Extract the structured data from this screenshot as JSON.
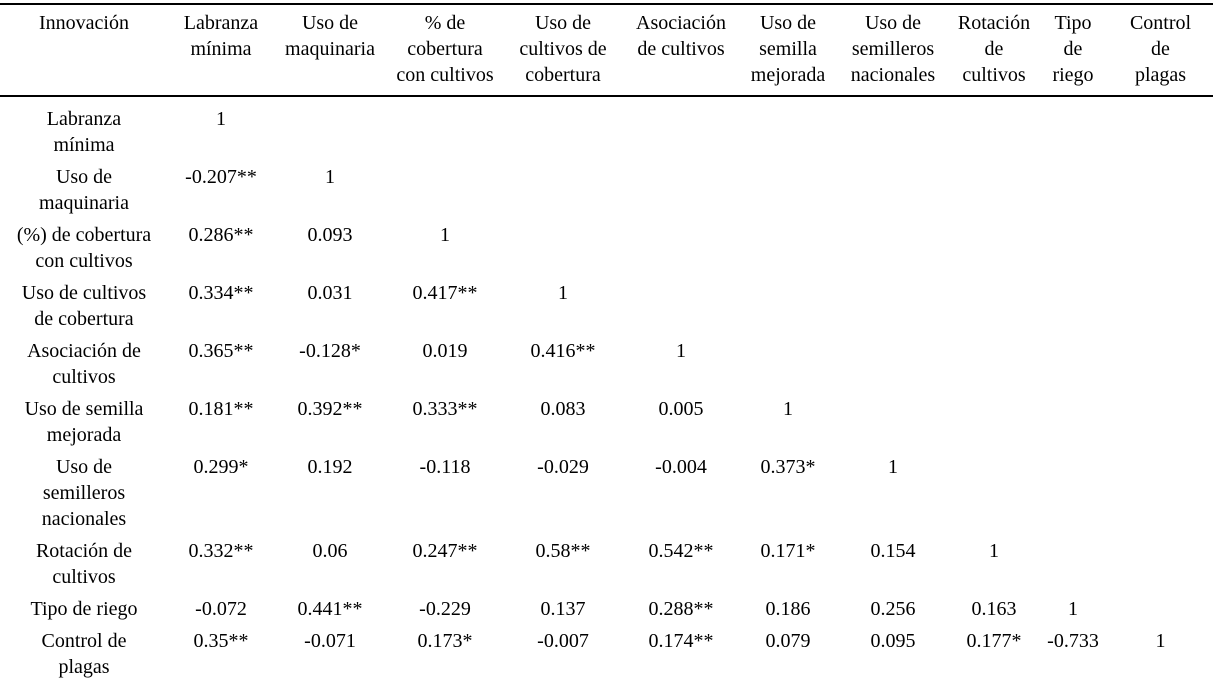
{
  "chart_data": {
    "type": "table",
    "description": "Correlation matrix of agricultural innovations",
    "columns": [
      "Innovación",
      "Labranza\nmínima",
      "Uso de\nmaquinaria",
      "% de\ncobertura\ncon cultivos",
      "Uso de\ncultivos de\ncobertura",
      "Asociación\nde cultivos",
      "Uso de\nsemilla\nmejorada",
      "Uso de\nsemilleros\nnacionales",
      "Rotación\nde\ncultivos",
      "Tipo\nde\nriego",
      "Control\nde\nplagas"
    ],
    "rows": [
      {
        "label": "Labranza\nmínima",
        "values": [
          "1",
          "",
          "",
          "",
          "",
          "",
          "",
          "",
          "",
          ""
        ]
      },
      {
        "label": "Uso de\nmaquinaria",
        "values": [
          "-0.207**",
          "1",
          "",
          "",
          "",
          "",
          "",
          "",
          "",
          ""
        ]
      },
      {
        "label": "(%) de cobertura\ncon cultivos",
        "values": [
          "0.286**",
          "0.093",
          "1",
          "",
          "",
          "",
          "",
          "",
          "",
          ""
        ]
      },
      {
        "label": "Uso de cultivos\nde cobertura",
        "values": [
          "0.334**",
          "0.031",
          "0.417**",
          "1",
          "",
          "",
          "",
          "",
          "",
          ""
        ]
      },
      {
        "label": "Asociación de\ncultivos",
        "values": [
          "0.365**",
          "-0.128*",
          "0.019",
          "0.416**",
          "1",
          "",
          "",
          "",
          "",
          ""
        ]
      },
      {
        "label": "Uso de semilla\nmejorada",
        "values": [
          "0.181**",
          "0.392**",
          "0.333**",
          "0.083",
          "0.005",
          "1",
          "",
          "",
          "",
          ""
        ]
      },
      {
        "label": "Uso de\nsemilleros\nnacionales",
        "values": [
          "0.299*",
          "0.192",
          "-0.118",
          "-0.029",
          "-0.004",
          "0.373*",
          "1",
          "",
          "",
          ""
        ]
      },
      {
        "label": "Rotación de\ncultivos",
        "values": [
          "0.332**",
          "0.06",
          "0.247**",
          "0.58**",
          "0.542**",
          "0.171*",
          "0.154",
          "1",
          "",
          ""
        ]
      },
      {
        "label": "Tipo de riego",
        "values": [
          "-0.072",
          "0.441**",
          "-0.229",
          "0.137",
          "0.288**",
          "0.186",
          "0.256",
          "0.163",
          "1",
          ""
        ]
      },
      {
        "label": "Control de\nplagas",
        "values": [
          "0.35**",
          "-0.071",
          "0.173*",
          "-0.007",
          "0.174**",
          "0.079",
          "0.095",
          "0.177*",
          "-0.733",
          "1"
        ]
      }
    ]
  }
}
